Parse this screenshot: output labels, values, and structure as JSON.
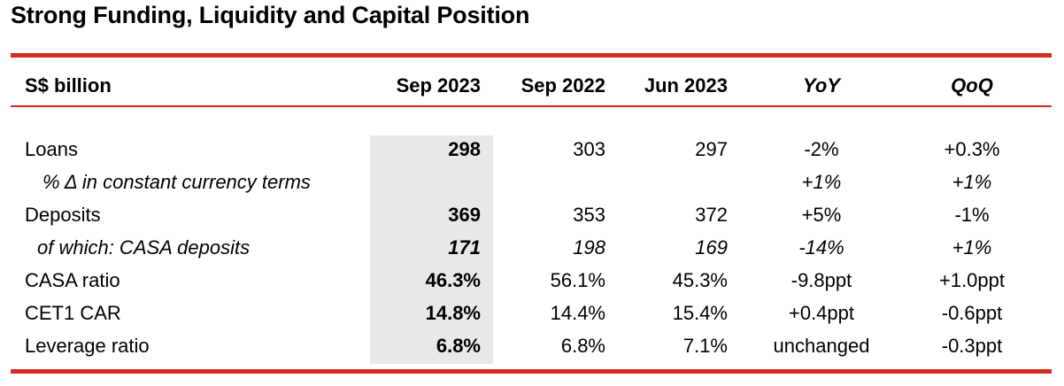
{
  "title": "Strong Funding, Liquidity and Capital Position",
  "headers": [
    "S$ billion",
    "Sep 2023",
    "Sep 2022",
    "Jun 2023",
    "YoY",
    "QoQ"
  ],
  "rows": [
    {
      "label": "Loans",
      "sep2023": "298",
      "sep2022": "303",
      "jun2023": "297",
      "yoy": "-2%",
      "qoq": "+0.3%"
    },
    {
      "label": "% Δ in constant currency terms",
      "sep2023": "",
      "sep2022": "",
      "jun2023": "",
      "yoy": "+1%",
      "qoq": "+1%"
    },
    {
      "label": "Deposits",
      "sep2023": "369",
      "sep2022": "353",
      "jun2023": "372",
      "yoy": "+5%",
      "qoq": "-1%"
    },
    {
      "label": "of which: CASA deposits",
      "sep2023": "171",
      "sep2022": "198",
      "jun2023": "169",
      "yoy": "-14%",
      "qoq": "+1%"
    },
    {
      "label": "CASA ratio",
      "sep2023": "46.3%",
      "sep2022": "56.1%",
      "jun2023": "45.3%",
      "yoy": "-9.8ppt",
      "qoq": "+1.0ppt"
    },
    {
      "label": "CET1 CAR",
      "sep2023": "14.8%",
      "sep2022": "14.4%",
      "jun2023": "15.4%",
      "yoy": "+0.4ppt",
      "qoq": "-0.6ppt"
    },
    {
      "label": "Leverage ratio",
      "sep2023": "6.8%",
      "sep2022": "6.8%",
      "jun2023": "7.1%",
      "yoy": "unchanged",
      "qoq": "-0.3ppt"
    }
  ],
  "colors": {
    "accent": "#d62b1f",
    "highlight": "#e8e8e8"
  }
}
